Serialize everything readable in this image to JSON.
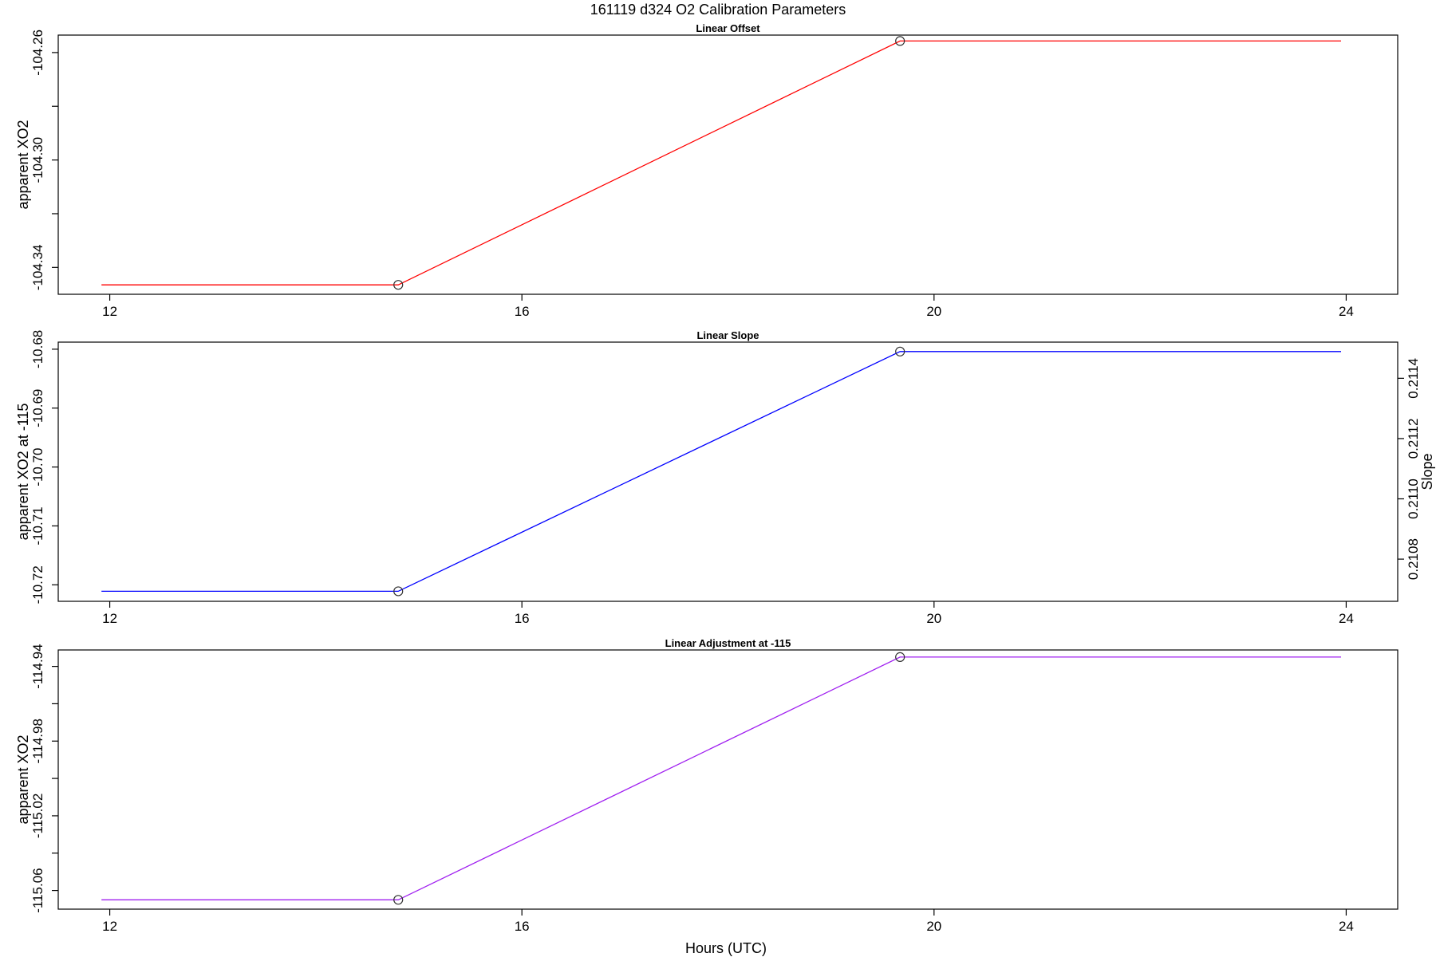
{
  "main_title": "161119   d324   O2 Calibration Parameters",
  "xlabel": "Hours (UTC)",
  "chart_data": [
    {
      "type": "line",
      "title": "Linear Offset",
      "xlabel": "Hours (UTC)",
      "ylabel": "apparent XO2",
      "xlim": [
        11.5,
        24.5
      ],
      "ylim": [
        -104.35,
        -104.2535
      ],
      "x_ticks": [
        12,
        16,
        20,
        24
      ],
      "x_tick_labels": [
        "12",
        "16",
        "20",
        "24"
      ],
      "y_ticks": [
        -104.34,
        -104.32,
        -104.3,
        -104.28,
        -104.26
      ],
      "y_tick_labels": [
        "-104.34",
        "",
        "-104.30",
        "",
        "-104.26"
      ],
      "color": "#ff0000",
      "series": [
        {
          "x": [
            11.92,
            14.8,
            19.67,
            23.95
          ],
          "y": [
            -104.3465,
            -104.3465,
            -104.2557,
            -104.2557
          ]
        }
      ],
      "markers": [
        {
          "x": 14.8,
          "y": -104.3465
        },
        {
          "x": 19.67,
          "y": -104.2557
        }
      ]
    },
    {
      "type": "line",
      "title": "Linear Slope",
      "xlabel": "",
      "ylabel": "apparent XO2 at -115",
      "xlim": [
        11.5,
        24.5
      ],
      "ylim": [
        -10.7228,
        -10.6788
      ],
      "x_ticks": [
        12,
        16,
        20,
        24
      ],
      "x_tick_labels": [
        "12",
        "16",
        "20",
        "24"
      ],
      "y_ticks": [
        -10.72,
        -10.71,
        -10.7,
        -10.69,
        -10.68
      ],
      "y_tick_labels": [
        "-10.72",
        "-10.71",
        "-10.70",
        "-10.69",
        "-10.68"
      ],
      "y2label": "Slope",
      "y2lim": [
        0.21066,
        0.21152
      ],
      "y2_ticks": [
        0.2108,
        0.211,
        0.2112,
        0.2114
      ],
      "y2_tick_labels": [
        "0.2108",
        "0.2110",
        "0.2112",
        "0.2114"
      ],
      "color": "#0000ff",
      "series": [
        {
          "x": [
            11.92,
            14.8,
            19.67,
            23.95
          ],
          "y": [
            -10.7211,
            -10.7211,
            -10.6804,
            -10.6804
          ]
        }
      ],
      "markers": [
        {
          "x": 14.8,
          "y": -10.7211
        },
        {
          "x": 19.67,
          "y": -10.6804
        }
      ]
    },
    {
      "type": "line",
      "title": "Linear Adjustment at -115",
      "xlabel": "Hours (UTC)",
      "ylabel": "apparent XO2",
      "xlim": [
        11.5,
        24.5
      ],
      "ylim": [
        -115.07,
        -114.9312
      ],
      "x_ticks": [
        12,
        16,
        20,
        24
      ],
      "x_tick_labels": [
        "12",
        "16",
        "20",
        "24"
      ],
      "y_ticks": [
        -115.06,
        -115.04,
        -115.02,
        -115.0,
        -114.98,
        -114.96,
        -114.94
      ],
      "y_tick_labels": [
        "-115.06",
        "",
        "-115.02",
        "",
        "-114.98",
        "",
        "-114.94"
      ],
      "color": "#a020f0",
      "series": [
        {
          "x": [
            11.92,
            14.8,
            19.67,
            23.95
          ],
          "y": [
            -115.065,
            -115.065,
            -114.935,
            -114.935
          ]
        }
      ],
      "markers": [
        {
          "x": 14.8,
          "y": -115.065
        },
        {
          "x": 19.67,
          "y": -114.935
        }
      ]
    }
  ]
}
